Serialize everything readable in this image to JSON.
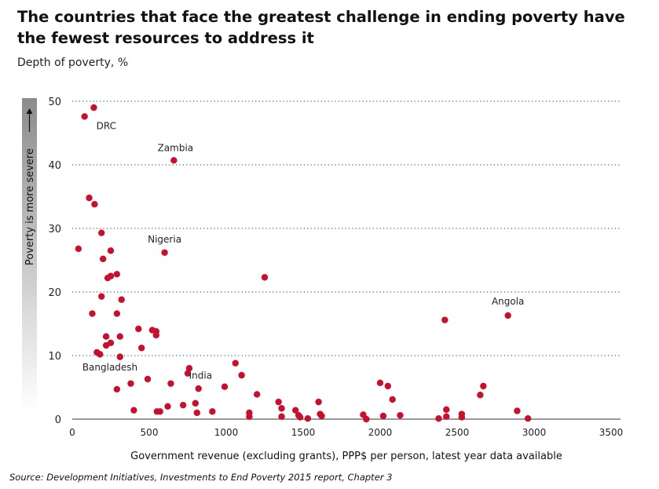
{
  "title": "The countries that face the greatest challenge in ending poverty have the fewest resources to address it",
  "subtitle": "Depth of poverty, %",
  "source": "Source: Development Initiatives, Investments to End Poverty 2015 report, Chapter 3",
  "colors": {
    "point": "#c8102e",
    "grid": "#2c6b8f",
    "axis": "#333333",
    "gradient_top": "#8c8c8c"
  },
  "chart_data": {
    "type": "scatter",
    "title": "",
    "xlabel": "Government revenue (excluding grants), PPP$ per person, latest year data available",
    "ylabel": "Depth of poverty, %",
    "side_label": "Poverty is more severe",
    "xlim": [
      0,
      3500
    ],
    "ylim": [
      0,
      50
    ],
    "x_ticks": [
      0,
      500,
      1000,
      1500,
      2000,
      2500,
      3000,
      3500
    ],
    "y_ticks": [
      0,
      10,
      20,
      30,
      40,
      50
    ],
    "grid": "horizontal dotted",
    "points": [
      {
        "x": 40,
        "y": 26.8
      },
      {
        "x": 80,
        "y": 47.6
      },
      {
        "x": 140,
        "y": 49.0
      },
      {
        "x": 110,
        "y": 34.8
      },
      {
        "x": 145,
        "y": 33.8
      },
      {
        "x": 190,
        "y": 29.3
      },
      {
        "x": 200,
        "y": 25.2
      },
      {
        "x": 250,
        "y": 26.5
      },
      {
        "x": 290,
        "y": 22.8
      },
      {
        "x": 230,
        "y": 22.2
      },
      {
        "x": 250,
        "y": 22.5
      },
      {
        "x": 320,
        "y": 18.8
      },
      {
        "x": 190,
        "y": 19.3
      },
      {
        "x": 130,
        "y": 16.6
      },
      {
        "x": 290,
        "y": 16.6
      },
      {
        "x": 430,
        "y": 14.2
      },
      {
        "x": 520,
        "y": 14.0
      },
      {
        "x": 545,
        "y": 13.8
      },
      {
        "x": 545,
        "y": 13.2
      },
      {
        "x": 310,
        "y": 13.0
      },
      {
        "x": 220,
        "y": 13.0
      },
      {
        "x": 250,
        "y": 12.0
      },
      {
        "x": 220,
        "y": 11.6
      },
      {
        "x": 450,
        "y": 11.2
      },
      {
        "x": 160,
        "y": 10.5
      },
      {
        "x": 180,
        "y": 10.2
      },
      {
        "x": 310,
        "y": 9.8
      },
      {
        "x": 600,
        "y": 26.2
      },
      {
        "x": 660,
        "y": 40.7
      },
      {
        "x": 1250,
        "y": 22.3
      },
      {
        "x": 1060,
        "y": 8.8
      },
      {
        "x": 1100,
        "y": 6.9
      },
      {
        "x": 760,
        "y": 8.0
      },
      {
        "x": 750,
        "y": 7.2
      },
      {
        "x": 490,
        "y": 6.3
      },
      {
        "x": 640,
        "y": 5.6
      },
      {
        "x": 380,
        "y": 5.6
      },
      {
        "x": 290,
        "y": 4.7
      },
      {
        "x": 820,
        "y": 4.8
      },
      {
        "x": 990,
        "y": 5.1
      },
      {
        "x": 1200,
        "y": 3.9
      },
      {
        "x": 800,
        "y": 2.5
      },
      {
        "x": 720,
        "y": 2.2
      },
      {
        "x": 620,
        "y": 2.0
      },
      {
        "x": 550,
        "y": 1.2
      },
      {
        "x": 570,
        "y": 1.2
      },
      {
        "x": 400,
        "y": 1.4
      },
      {
        "x": 810,
        "y": 1.0
      },
      {
        "x": 910,
        "y": 1.2
      },
      {
        "x": 1150,
        "y": 1.0
      },
      {
        "x": 1150,
        "y": 0.4
      },
      {
        "x": 1340,
        "y": 2.7
      },
      {
        "x": 1360,
        "y": 1.7
      },
      {
        "x": 1360,
        "y": 0.4
      },
      {
        "x": 1450,
        "y": 1.4
      },
      {
        "x": 1470,
        "y": 0.6
      },
      {
        "x": 1480,
        "y": 0.3
      },
      {
        "x": 1530,
        "y": 0.1
      },
      {
        "x": 1600,
        "y": 2.7
      },
      {
        "x": 1610,
        "y": 0.8
      },
      {
        "x": 1620,
        "y": 0.5
      },
      {
        "x": 1890,
        "y": 0.7
      },
      {
        "x": 1910,
        "y": 0.0
      },
      {
        "x": 2000,
        "y": 5.7
      },
      {
        "x": 2050,
        "y": 5.2
      },
      {
        "x": 2080,
        "y": 3.1
      },
      {
        "x": 2020,
        "y": 0.5
      },
      {
        "x": 2130,
        "y": 0.6
      },
      {
        "x": 2420,
        "y": 15.6
      },
      {
        "x": 2430,
        "y": 1.5
      },
      {
        "x": 2430,
        "y": 0.4
      },
      {
        "x": 2380,
        "y": 0.1
      },
      {
        "x": 2530,
        "y": 0.8
      },
      {
        "x": 2530,
        "y": 0.3
      },
      {
        "x": 2650,
        "y": 3.8
      },
      {
        "x": 2670,
        "y": 5.2
      },
      {
        "x": 2830,
        "y": 16.3
      },
      {
        "x": 2890,
        "y": 1.3
      },
      {
        "x": 2960,
        "y": 0.1
      }
    ],
    "annotations": [
      {
        "label": "DRC",
        "x": 80,
        "y": 47.6
      },
      {
        "label": "Zambia",
        "x": 660,
        "y": 40.7
      },
      {
        "label": "Nigeria",
        "x": 600,
        "y": 26.2
      },
      {
        "label": "Angola",
        "x": 2830,
        "y": 16.3
      },
      {
        "label": "Bangladesh",
        "x": 250,
        "y": 12.0
      },
      {
        "label": "India",
        "x": 910,
        "y": 1.2
      }
    ]
  }
}
